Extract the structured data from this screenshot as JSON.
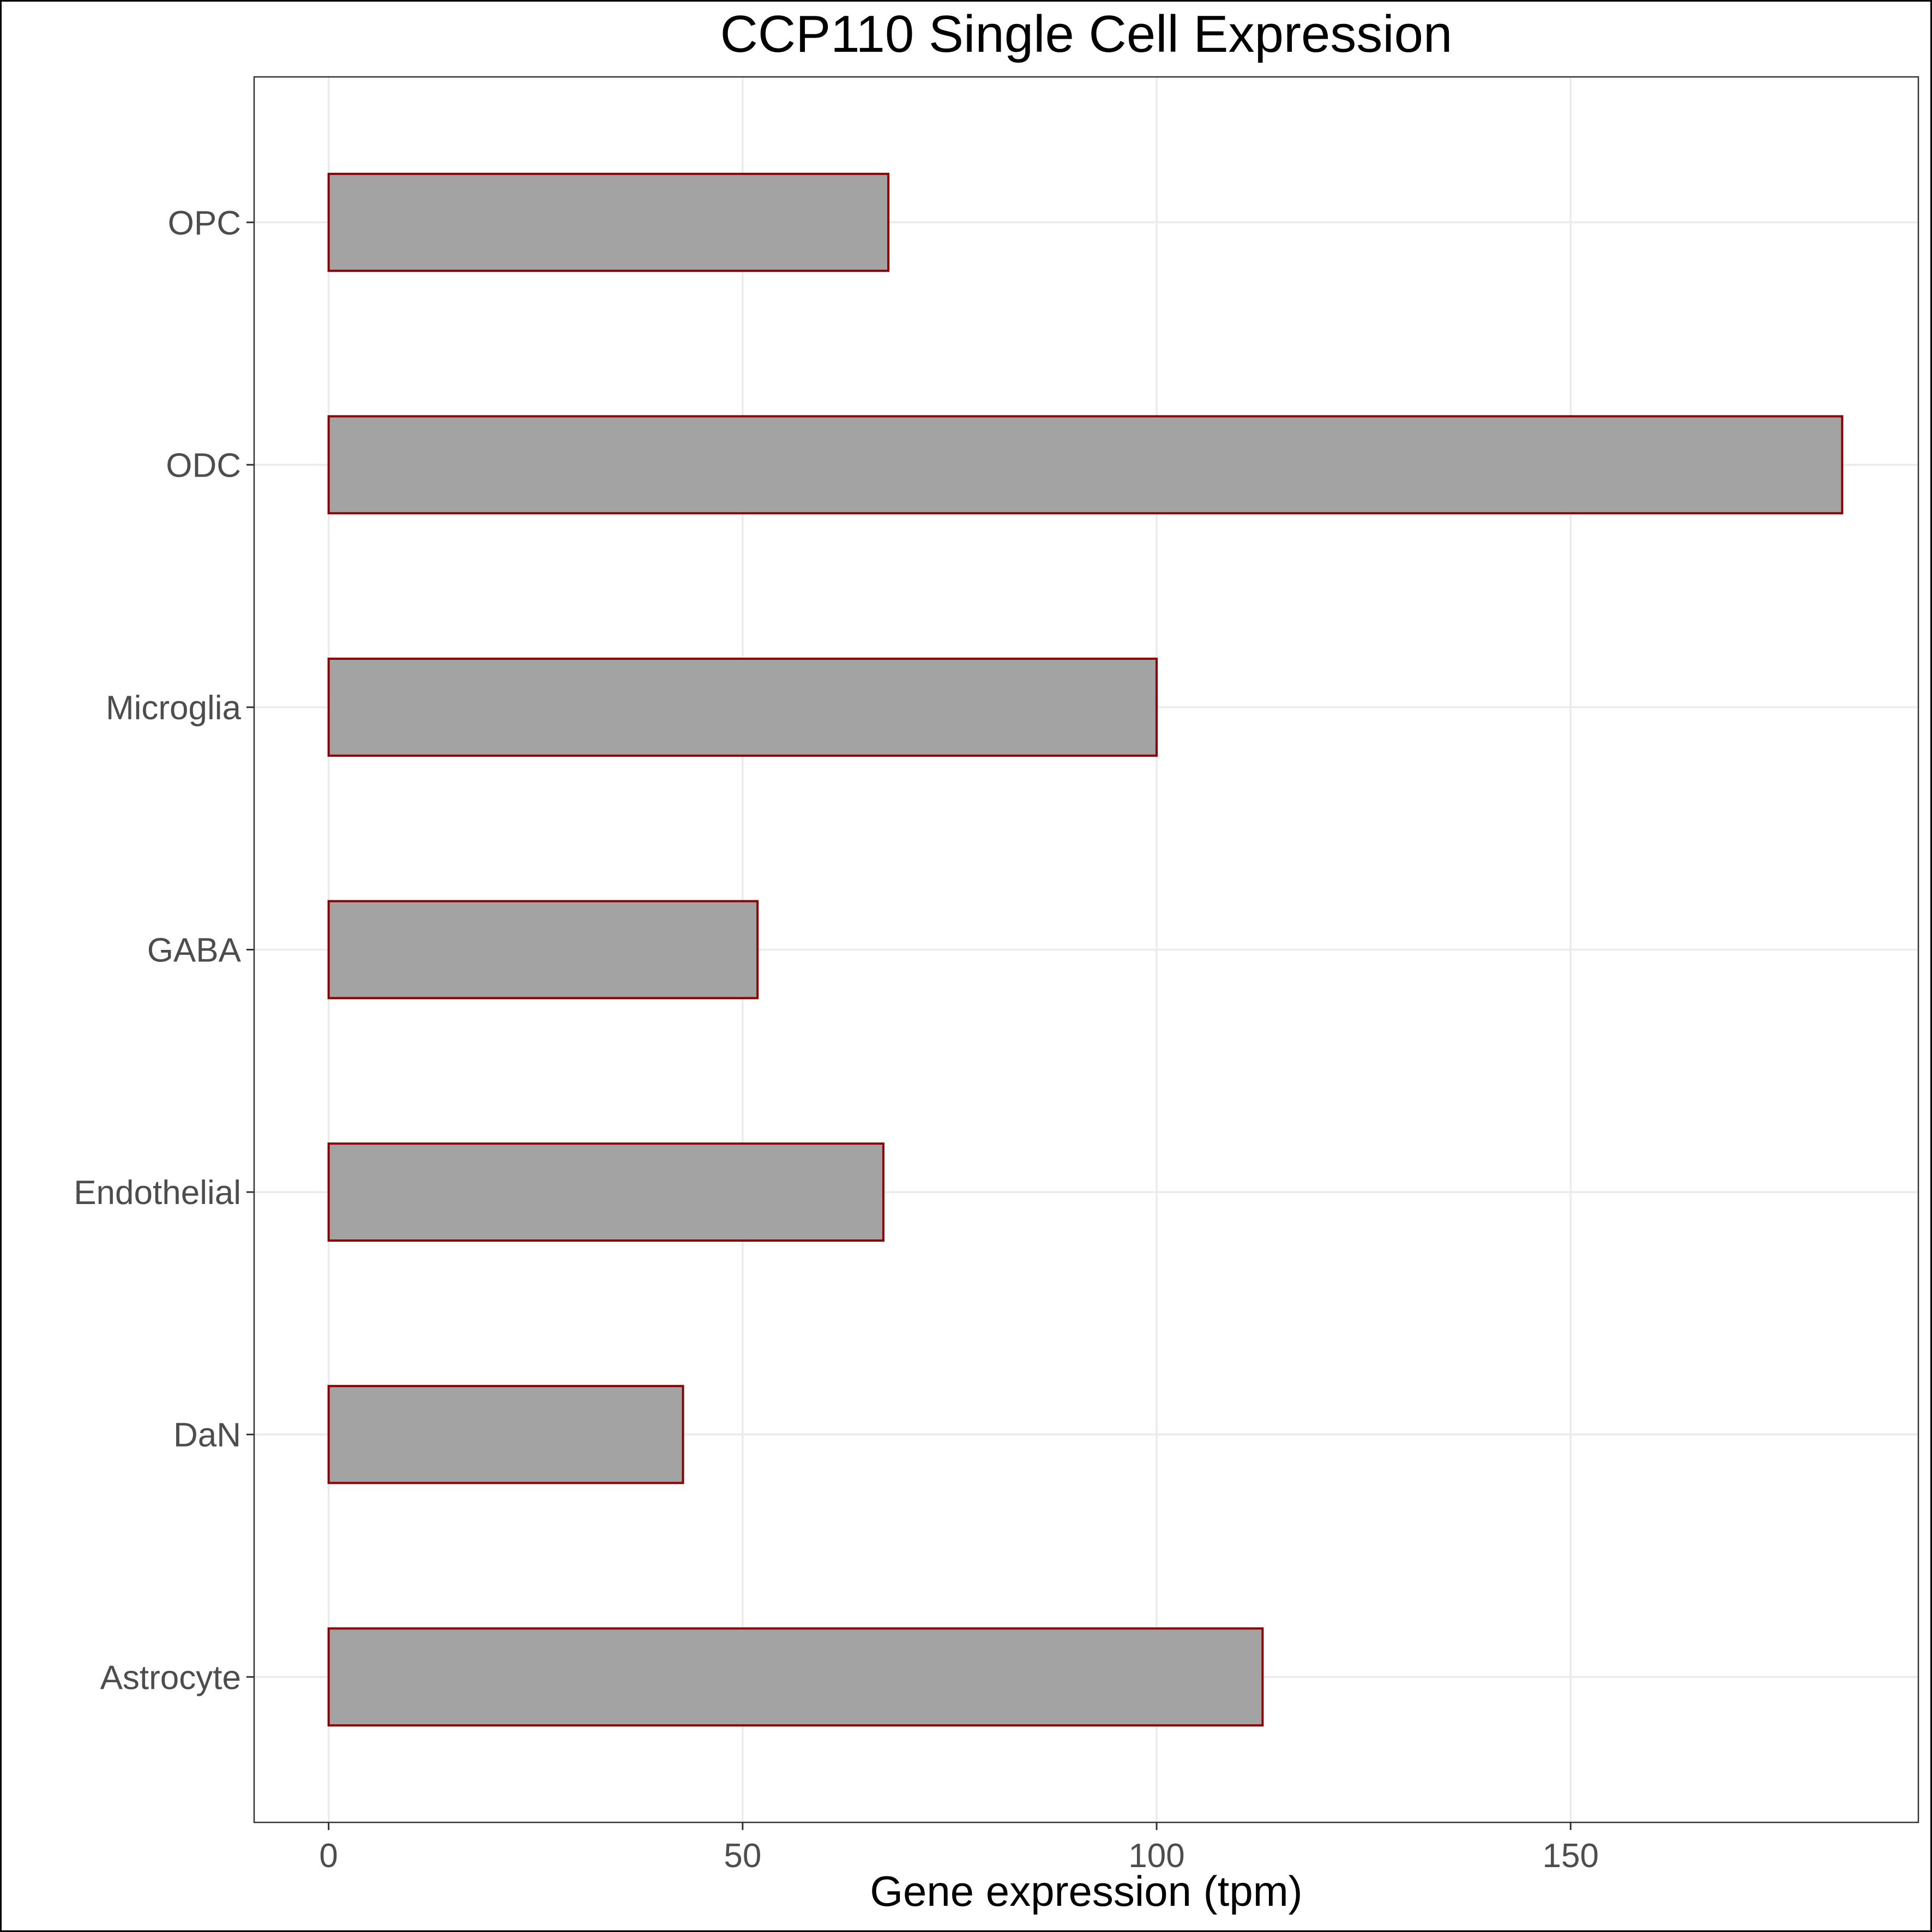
{
  "chart_data": {
    "type": "bar",
    "orientation": "horizontal",
    "title": "CCP110 Single Cell Expression",
    "xlabel": "Gene expression (tpm)",
    "ylabel": "",
    "categories": [
      "Astrocyte",
      "DaN",
      "Endothelial",
      "GABA",
      "Microglia",
      "ODC",
      "OPC"
    ],
    "values": [
      112.8,
      42.8,
      67.0,
      51.8,
      100.0,
      182.8,
      67.6
    ],
    "xlim": [
      -9,
      192
    ],
    "xticks": [
      0,
      50,
      100,
      150
    ],
    "xtick_labels": [
      "0",
      "50",
      "100",
      "150"
    ],
    "grid": true,
    "legend": "none",
    "colors": {
      "bar_fill": "#a3a3a3",
      "bar_stroke": "#8b0000",
      "grid": "#ebebeb",
      "panel_border": "#333333",
      "outer_border": "#000000",
      "tick_label": "#4d4d4d"
    }
  }
}
